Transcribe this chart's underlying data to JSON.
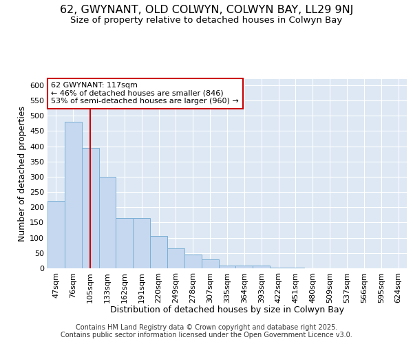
{
  "title_line1": "62, GWYNANT, OLD COLWYN, COLWYN BAY, LL29 9NJ",
  "title_line2": "Size of property relative to detached houses in Colwyn Bay",
  "xlabel": "Distribution of detached houses by size in Colwyn Bay",
  "ylabel": "Number of detached properties",
  "categories": [
    "47sqm",
    "76sqm",
    "105sqm",
    "133sqm",
    "162sqm",
    "191sqm",
    "220sqm",
    "249sqm",
    "278sqm",
    "307sqm",
    "335sqm",
    "364sqm",
    "393sqm",
    "422sqm",
    "451sqm",
    "480sqm",
    "509sqm",
    "537sqm",
    "566sqm",
    "595sqm",
    "624sqm"
  ],
  "values": [
    220,
    480,
    395,
    300,
    165,
    165,
    105,
    65,
    45,
    30,
    8,
    8,
    8,
    3,
    2,
    1,
    1,
    0,
    0,
    1,
    1
  ],
  "bar_color": "#c5d8f0",
  "bar_edge_color": "#7bafd4",
  "vline_x": 2,
  "vline_color": "#cc0000",
  "annotation_title": "62 GWYNANT: 117sqm",
  "annotation_line2": "← 46% of detached houses are smaller (846)",
  "annotation_line3": "53% of semi-detached houses are larger (960) →",
  "annotation_box_color": "#ffffff",
  "annotation_border_color": "#cc0000",
  "ylim": [
    0,
    620
  ],
  "yticks": [
    0,
    50,
    100,
    150,
    200,
    250,
    300,
    350,
    400,
    450,
    500,
    550,
    600
  ],
  "background_color": "#dde8f4",
  "footer_line1": "Contains HM Land Registry data © Crown copyright and database right 2025.",
  "footer_line2": "Contains public sector information licensed under the Open Government Licence v3.0.",
  "title_fontsize": 11.5,
  "subtitle_fontsize": 9.5,
  "axis_label_fontsize": 9,
  "tick_fontsize": 8,
  "footer_fontsize": 7
}
